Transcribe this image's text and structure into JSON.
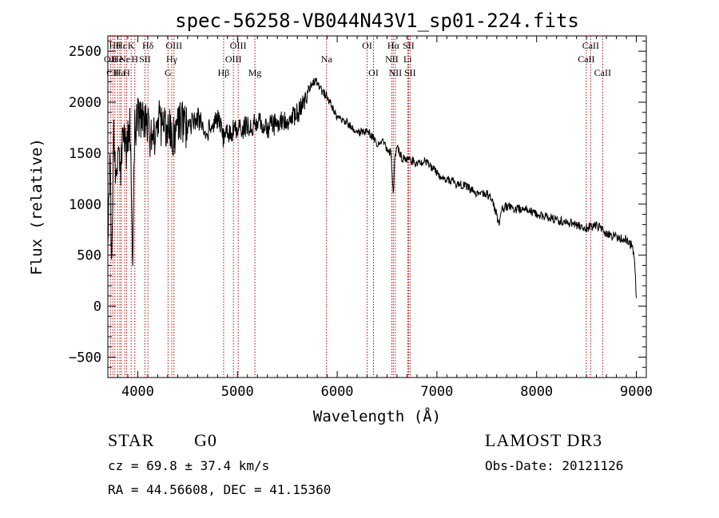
{
  "chart_data": {
    "type": "line",
    "title": "spec-56258-VB044N43V1_sp01-224.fits",
    "xlabel": "Wavelength (Å)",
    "ylabel": "Flux (relative)",
    "xlim": [
      3700,
      9100
    ],
    "ylim": [
      -700,
      2650
    ],
    "xticks": [
      4000,
      5000,
      6000,
      7000,
      8000,
      9000
    ],
    "xtick_labels": [
      "4000",
      "5000",
      "6000",
      "7000",
      "8000",
      "9000"
    ],
    "yticks": [
      -500,
      0,
      500,
      1000,
      1500,
      2000,
      2500
    ],
    "ytick_labels": [
      "−500",
      "0",
      "500",
      "1000",
      "1500",
      "2000",
      "2500"
    ],
    "series": [
      {
        "name": "flux",
        "x": [
          3700,
          3720,
          3740,
          3760,
          3780,
          3800,
          3830,
          3860,
          3890,
          3920,
          3950,
          3970,
          4000,
          4050,
          4100,
          4150,
          4200,
          4250,
          4300,
          4340,
          4400,
          4500,
          4600,
          4700,
          4800,
          4861,
          4900,
          5000,
          5100,
          5200,
          5300,
          5400,
          5500,
          5600,
          5650,
          5700,
          5750,
          5800,
          5850,
          5900,
          5950,
          6000,
          6100,
          6200,
          6300,
          6400,
          6450,
          6500,
          6540,
          6563,
          6580,
          6600,
          6650,
          6700,
          6800,
          6900,
          7000,
          7100,
          7200,
          7300,
          7400,
          7500,
          7550,
          7600,
          7620,
          7650,
          7700,
          7800,
          7900,
          8000,
          8100,
          8200,
          8300,
          8400,
          8500,
          8600,
          8700,
          8800,
          8900,
          8950,
          8980,
          9000
        ],
        "values": [
          500,
          1500,
          300,
          1800,
          1200,
          1700,
          1300,
          1800,
          1500,
          1750,
          500,
          1700,
          1900,
          1800,
          1750,
          1600,
          1850,
          1700,
          1800,
          1600,
          1800,
          1750,
          1850,
          1700,
          1850,
          1650,
          1700,
          1750,
          1750,
          1800,
          1750,
          1800,
          1800,
          1900,
          1950,
          2100,
          2200,
          2200,
          2100,
          2050,
          1950,
          1850,
          1800,
          1700,
          1720,
          1600,
          1620,
          1550,
          1500,
          1100,
          1500,
          1550,
          1450,
          1450,
          1400,
          1420,
          1300,
          1250,
          1200,
          1180,
          1100,
          1100,
          1050,
          900,
          800,
          950,
          980,
          950,
          950,
          900,
          870,
          850,
          820,
          800,
          770,
          800,
          700,
          680,
          650,
          600,
          500,
          80
        ]
      }
    ],
    "lines": [
      {
        "x": 3727,
        "label": "OII",
        "row": 1
      },
      {
        "x": 3750,
        "label": "CII",
        "row": 2
      },
      {
        "x": 3770,
        "label": "Hθ",
        "row": 0
      },
      {
        "x": 3798,
        "label": "He",
        "row": 1
      },
      {
        "x": 3820,
        "label": "Ha",
        "row": 2
      },
      {
        "x": 3835,
        "label": "Hε",
        "row": 0
      },
      {
        "x": 3869,
        "label": "Ne",
        "row": 1
      },
      {
        "x": 3889,
        "label": "H",
        "row": 2
      },
      {
        "x": 3934,
        "label": "K",
        "row": 0
      },
      {
        "x": 3970,
        "label": "H",
        "row": 1
      },
      {
        "x": 4072,
        "label": "SII",
        "row": 1
      },
      {
        "x": 4102,
        "label": "Hδ",
        "row": 0
      },
      {
        "x": 4304,
        "label": "G",
        "row": 2
      },
      {
        "x": 4341,
        "label": "Hγ",
        "row": 1
      },
      {
        "x": 4363,
        "label": "OIII",
        "row": 0
      },
      {
        "x": 4861,
        "label": "Hβ",
        "row": 2
      },
      {
        "x": 4959,
        "label": "OIII",
        "row": 1
      },
      {
        "x": 5007,
        "label": "OIII",
        "row": 0
      },
      {
        "x": 5175,
        "label": "Mg",
        "row": 2
      },
      {
        "x": 5893,
        "label": "Na",
        "row": 1
      },
      {
        "x": 6300,
        "label": "OI",
        "row": 0
      },
      {
        "x": 6364,
        "label": "OI",
        "row": 2
      },
      {
        "x": 6548,
        "label": "NII",
        "row": 1
      },
      {
        "x": 6563,
        "label": "Hα",
        "row": 0
      },
      {
        "x": 6583,
        "label": "NII",
        "row": 2
      },
      {
        "x": 6707,
        "label": "Li",
        "row": 1
      },
      {
        "x": 6716,
        "label": "SII",
        "row": 0
      },
      {
        "x": 6731,
        "label": "SII",
        "row": 2
      },
      {
        "x": 8498,
        "label": "CaII",
        "row": 1
      },
      {
        "x": 8542,
        "label": "CaII",
        "row": 0
      },
      {
        "x": 8662,
        "label": "CaII",
        "row": 2
      }
    ]
  },
  "info": {
    "object_class": "STAR",
    "subclass": "G0",
    "survey": "LAMOST DR3",
    "cz": "cz = 69.8 ± 37.4 km/s",
    "obs_date": "Obs-Date: 20121126",
    "coords": "RA =  44.56608, DEC =  41.15360"
  },
  "colors": {
    "line_marker": "#cc0000",
    "spectrum": "#000000",
    "axes": "#000000"
  }
}
